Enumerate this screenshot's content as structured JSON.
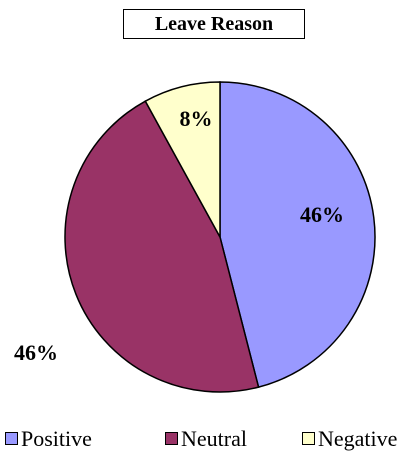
{
  "chart_data": {
    "type": "pie",
    "title": "Leave Reason",
    "categories": [
      "Positive",
      "Neutral",
      "Negative"
    ],
    "values": [
      46,
      46,
      8
    ],
    "value_labels": [
      "46%",
      "46%",
      "8%"
    ],
    "colors": [
      "#9999ff",
      "#993366",
      "#ffffcc"
    ],
    "legend_position": "bottom"
  }
}
